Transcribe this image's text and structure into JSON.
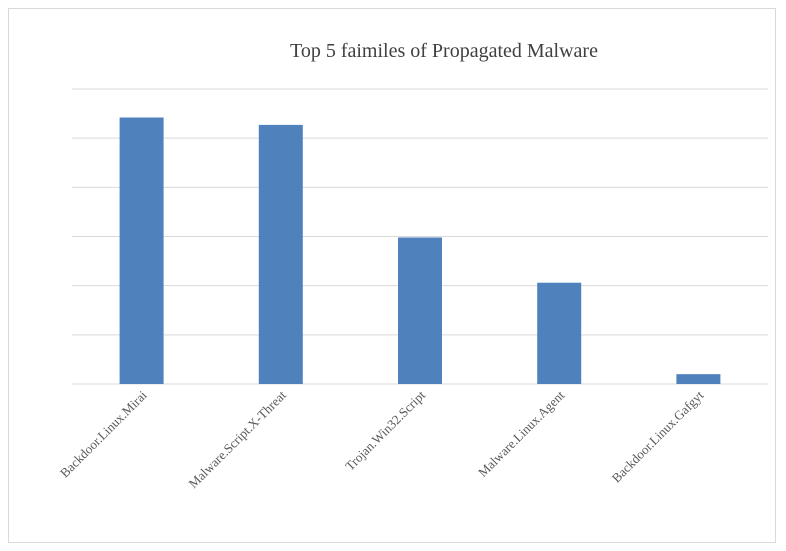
{
  "chart_data": {
    "type": "bar",
    "title": "Top 5 faimiles of Propagated Malware",
    "categories": [
      "Backdoor.Linux.Mirai",
      "Malware.Script.X-Threat",
      "Trojan.Win32.Script",
      "Malware.Linux.Agent",
      "Backdoor.Linux.Gafgyt"
    ],
    "values": [
      5.42,
      5.27,
      2.98,
      2.06,
      0.2
    ],
    "ylim": [
      0,
      6
    ],
    "grid": true,
    "legend": "none",
    "colors": {
      "bar": "#4f81bd",
      "grid": "#d9d9d9"
    }
  }
}
